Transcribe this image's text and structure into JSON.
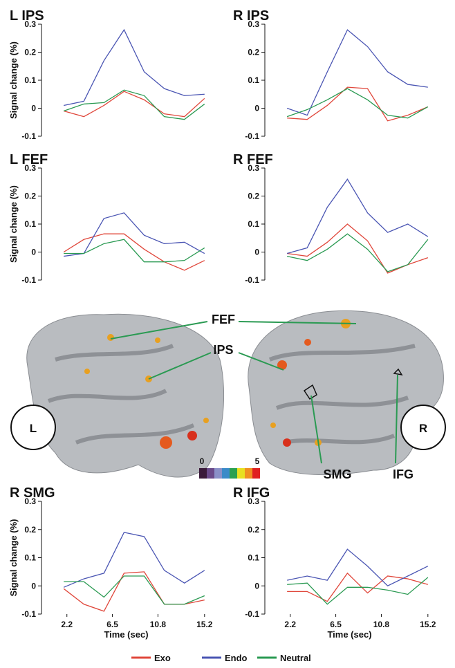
{
  "chart_data": [
    {
      "type": "line",
      "title": "L IPS",
      "ylabel": "Signal change (%)",
      "x": [
        1.9,
        3.8,
        5.7,
        7.6,
        9.5,
        11.4,
        13.3,
        15.2
      ],
      "xlim": [
        -0.2,
        15.8
      ],
      "ylim": [
        -0.1,
        0.3
      ],
      "yticks": [
        -0.1,
        0,
        0.1,
        0.2,
        0.3
      ],
      "series": [
        {
          "name": "Exo",
          "color": "#e0473b",
          "values": [
            -0.01,
            -0.03,
            0.01,
            0.06,
            0.03,
            -0.02,
            -0.03,
            0.035
          ]
        },
        {
          "name": "Endo",
          "color": "#4a55b3",
          "values": [
            0.01,
            0.025,
            0.17,
            0.28,
            0.13,
            0.07,
            0.045,
            0.05
          ]
        },
        {
          "name": "Neutral",
          "color": "#2a9a52",
          "values": [
            -0.01,
            0.015,
            0.02,
            0.065,
            0.045,
            -0.03,
            -0.04,
            0.015
          ]
        }
      ]
    },
    {
      "type": "line",
      "title": "R IPS",
      "x": [
        1.9,
        3.8,
        5.7,
        7.6,
        9.5,
        11.4,
        13.3,
        15.2
      ],
      "xlim": [
        -0.2,
        15.8
      ],
      "ylim": [
        -0.1,
        0.3
      ],
      "yticks": [
        -0.1,
        0,
        0.1,
        0.2,
        0.3
      ],
      "series": [
        {
          "name": "Exo",
          "color": "#e0473b",
          "values": [
            -0.035,
            -0.04,
            0.01,
            0.075,
            0.07,
            -0.045,
            -0.025,
            0.005
          ]
        },
        {
          "name": "Endo",
          "color": "#4a55b3",
          "values": [
            0,
            -0.025,
            0.13,
            0.28,
            0.22,
            0.13,
            0.085,
            0.075
          ]
        },
        {
          "name": "Neutral",
          "color": "#2a9a52",
          "values": [
            -0.03,
            -0.005,
            0.03,
            0.07,
            0.03,
            -0.025,
            -0.035,
            0.005
          ]
        }
      ]
    },
    {
      "type": "line",
      "title": "L FEF",
      "ylabel": "Signal change (%)",
      "x": [
        1.9,
        3.8,
        5.7,
        7.6,
        9.5,
        11.4,
        13.3,
        15.2
      ],
      "xlim": [
        -0.2,
        15.8
      ],
      "ylim": [
        -0.1,
        0.3
      ],
      "yticks": [
        -0.1,
        0,
        0.1,
        0.2,
        0.3
      ],
      "series": [
        {
          "name": "Exo",
          "color": "#e0473b",
          "values": [
            0,
            0.045,
            0.065,
            0.065,
            0.01,
            -0.035,
            -0.065,
            -0.03
          ]
        },
        {
          "name": "Endo",
          "color": "#4a55b3",
          "values": [
            -0.015,
            -0.005,
            0.12,
            0.14,
            0.06,
            0.03,
            0.035,
            -0.005
          ]
        },
        {
          "name": "Neutral",
          "color": "#2a9a52",
          "values": [
            -0.005,
            -0.005,
            0.03,
            0.045,
            -0.035,
            -0.035,
            -0.03,
            0.015
          ]
        }
      ]
    },
    {
      "type": "line",
      "title": "R FEF",
      "x": [
        1.9,
        3.8,
        5.7,
        7.6,
        9.5,
        11.4,
        13.3,
        15.2
      ],
      "xlim": [
        -0.2,
        15.8
      ],
      "ylim": [
        -0.1,
        0.3
      ],
      "yticks": [
        -0.1,
        0,
        0.1,
        0.2,
        0.3
      ],
      "series": [
        {
          "name": "Exo",
          "color": "#e0473b",
          "values": [
            -0.005,
            -0.015,
            0.035,
            0.1,
            0.04,
            -0.075,
            -0.045,
            -0.02
          ]
        },
        {
          "name": "Endo",
          "color": "#4a55b3",
          "values": [
            -0.005,
            0.015,
            0.16,
            0.26,
            0.14,
            0.07,
            0.1,
            0.055
          ]
        },
        {
          "name": "Neutral",
          "color": "#2a9a52",
          "values": [
            -0.015,
            -0.03,
            0.01,
            0.065,
            0.01,
            -0.07,
            -0.045,
            0.045
          ]
        }
      ]
    },
    {
      "type": "line",
      "title": "R SMG",
      "ylabel": "Signal change (%)",
      "xlabel": "Time (sec)",
      "x": [
        1.9,
        3.8,
        5.7,
        7.6,
        9.5,
        11.4,
        13.3,
        15.2
      ],
      "xlim": [
        -0.2,
        15.8
      ],
      "xticks": [
        2.2,
        6.5,
        10.8,
        15.2
      ],
      "ylim": [
        -0.1,
        0.3
      ],
      "yticks": [
        -0.1,
        0,
        0.1,
        0.2,
        0.3
      ],
      "series": [
        {
          "name": "Exo",
          "color": "#e0473b",
          "values": [
            -0.01,
            -0.065,
            -0.09,
            0.045,
            0.05,
            -0.065,
            -0.065,
            -0.05
          ]
        },
        {
          "name": "Endo",
          "color": "#4a55b3",
          "values": [
            -0.005,
            0.025,
            0.045,
            0.19,
            0.175,
            0.055,
            0.01,
            0.055
          ]
        },
        {
          "name": "Neutral",
          "color": "#2a9a52",
          "values": [
            0.015,
            0.015,
            -0.04,
            0.035,
            0.035,
            -0.065,
            -0.065,
            -0.035
          ]
        }
      ]
    },
    {
      "type": "line",
      "title": "R IFG",
      "xlabel": "Time (sec)",
      "x": [
        1.9,
        3.8,
        5.7,
        7.6,
        9.5,
        11.4,
        13.3,
        15.2
      ],
      "xlim": [
        -0.2,
        15.8
      ],
      "xticks": [
        2.2,
        6.5,
        10.8,
        15.2
      ],
      "ylim": [
        -0.1,
        0.3
      ],
      "yticks": [
        -0.1,
        0,
        0.1,
        0.2,
        0.3
      ],
      "series": [
        {
          "name": "Exo",
          "color": "#e0473b",
          "values": [
            -0.02,
            -0.02,
            -0.055,
            0.045,
            -0.025,
            0.035,
            0.025,
            0.005
          ]
        },
        {
          "name": "Endo",
          "color": "#4a55b3",
          "values": [
            0.02,
            0.035,
            0.02,
            0.13,
            0.07,
            0,
            0.035,
            0.07
          ]
        },
        {
          "name": "Neutral",
          "color": "#2a9a52",
          "values": [
            0.005,
            0.01,
            -0.065,
            -0.005,
            -0.005,
            -0.015,
            -0.03,
            0.03
          ]
        }
      ]
    }
  ],
  "brain": {
    "regions": [
      "FEF",
      "IPS",
      "SMG",
      "IFG"
    ],
    "hemispheres": [
      "L",
      "R"
    ],
    "colorbar_ticks": [
      0,
      5
    ]
  }
}
